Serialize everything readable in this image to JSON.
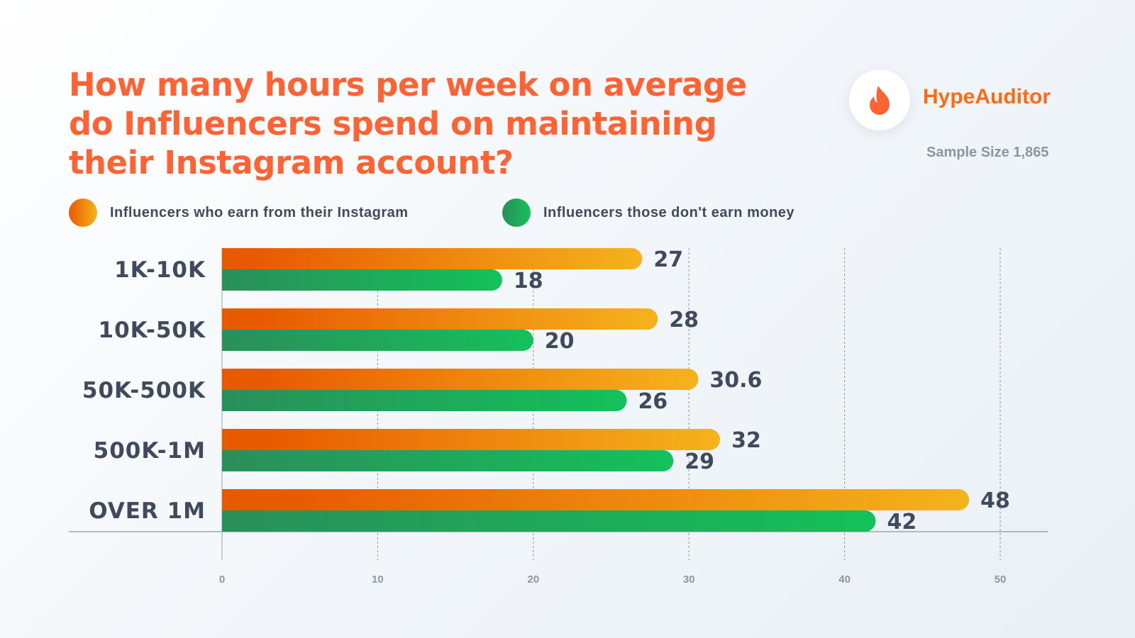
{
  "chart_data": {
    "type": "bar",
    "orientation": "horizontal",
    "title": "How many hours per week on average do Influencers spend on maintaining their Instagram account?",
    "categories": [
      "1K-10K",
      "10K-50K",
      "50K-500K",
      "500K-1M",
      "OVER 1M"
    ],
    "series": [
      {
        "name": "Influencers who earn from their Instagram",
        "values": [
          27,
          28,
          30.6,
          32,
          48
        ],
        "color": [
          "#e85a00",
          "#f5b31c"
        ]
      },
      {
        "name": "Influencers those don't earn money",
        "values": [
          18,
          20,
          26,
          29,
          42
        ],
        "color": [
          "#2a8f5a",
          "#14c15a"
        ]
      }
    ],
    "xlim": [
      0,
      50
    ],
    "ticks": [
      0,
      10,
      20,
      30,
      40,
      50
    ],
    "grid": true,
    "legend": "top-left",
    "xlabel": "",
    "ylabel": ""
  },
  "brand": {
    "name": "HypeAuditor",
    "icon": "flame-icon",
    "color": "#ff6a13"
  },
  "sample_size": "Sample Size 1,865",
  "title_color": "#ff6333"
}
